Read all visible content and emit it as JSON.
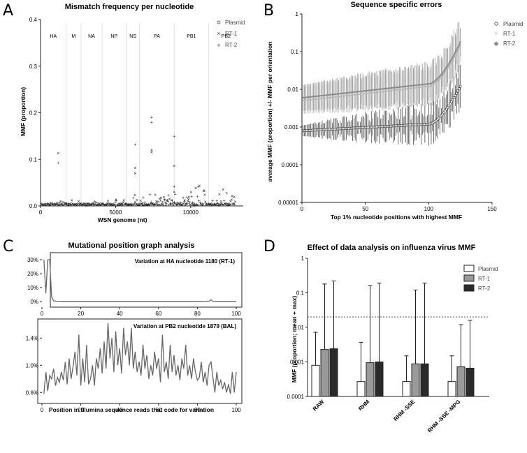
{
  "panels": {
    "a": "A",
    "b": "B",
    "c": "C",
    "d": "D"
  },
  "chart_data": [
    {
      "id": "A",
      "type": "scatter",
      "title": "Mismatch frequency per nucleotide",
      "xlabel": "WSN genome (nt)",
      "ylabel": "MMF (proportion)",
      "xlim": [
        0,
        13500
      ],
      "ylim": [
        0,
        0.4
      ],
      "xticks": [
        0,
        5000,
        10000
      ],
      "xtick_labels": [
        "0",
        "5000",
        "10000"
      ],
      "yticks": [
        0,
        0.1,
        0.2,
        0.3,
        0.4
      ],
      "ytick_labels": [
        "0.0",
        "0.1",
        "0.2",
        "0.3",
        "0.4"
      ],
      "segments": [
        {
          "name": "HA",
          "start": 0,
          "end": 1700
        },
        {
          "name": "M",
          "start": 1700,
          "end": 2700
        },
        {
          "name": "NA",
          "start": 2700,
          "end": 4100
        },
        {
          "name": "NP",
          "start": 4100,
          "end": 5700
        },
        {
          "name": "NS",
          "start": 5700,
          "end": 6600
        },
        {
          "name": "PA",
          "start": 6600,
          "end": 8900
        },
        {
          "name": "PB1",
          "start": 8900,
          "end": 11200
        },
        {
          "name": "PB2",
          "start": 11200,
          "end": 13500
        }
      ],
      "legend": [
        "Plasmid",
        "RT-1",
        "RT-2"
      ],
      "outliers": [
        {
          "series": "RT-1",
          "x": 1180,
          "y": 0.113
        },
        {
          "series": "RT-2",
          "x": 1180,
          "y": 0.093
        },
        {
          "series": "RT-2",
          "x": 6300,
          "y": 0.132
        },
        {
          "series": "RT-1",
          "x": 6300,
          "y": 0.082
        },
        {
          "series": "RT-1",
          "x": 6300,
          "y": 0.07
        },
        {
          "series": "RT-2",
          "x": 7400,
          "y": 0.19
        },
        {
          "series": "RT-2",
          "x": 7400,
          "y": 0.18
        },
        {
          "series": "RT-1",
          "x": 7400,
          "y": 0.12
        },
        {
          "series": "RT-1",
          "x": 7400,
          "y": 0.115
        },
        {
          "series": "RT-2",
          "x": 8900,
          "y": 0.15
        },
        {
          "series": "RT-1",
          "x": 8900,
          "y": 0.086
        },
        {
          "series": "RT-2",
          "x": 8900,
          "y": 0.042
        },
        {
          "series": "RT-1",
          "x": 8900,
          "y": 0.03
        }
      ]
    },
    {
      "id": "B",
      "type": "scatter",
      "title": "Sequence specific errors",
      "xlabel": "Top 1% nucleotide positions with highest MMF",
      "ylabel": "average MMF (proportion) +/- MMF per orientation",
      "xlim": [
        0,
        150
      ],
      "ylim_log": [
        1e-05,
        1
      ],
      "xticks": [
        0,
        50,
        100,
        150
      ],
      "xtick_labels": [
        "0",
        "50",
        "100",
        "150"
      ],
      "ytick_labels": [
        "1",
        "0.1",
        "0.01",
        "0.001",
        "0.0001",
        "0.00001"
      ],
      "legend": [
        "Plasmid",
        "RT-1",
        "RT-2"
      ],
      "n_points": 125,
      "series": [
        {
          "name": "Plasmid",
          "start": 0.0008,
          "knee": 0.0012,
          "end": 0.012
        },
        {
          "name": "RT-1",
          "start": 0.005,
          "knee": 0.012,
          "end": 0.15
        },
        {
          "name": "RT-2",
          "start": 0.006,
          "knee": 0.014,
          "end": 0.18
        }
      ]
    },
    {
      "id": "C",
      "type": "line",
      "title": "Mutational position graph analysis",
      "xlabel": "Position in Illumina sequence reads that code for variation",
      "subplots": [
        {
          "annotation": "Variation at HA nucleotide 1180  (RT-1)",
          "ylim": [
            0,
            30
          ],
          "yticks": [
            0,
            10,
            20,
            30
          ],
          "ytick_labels": [
            "0%",
            "10%",
            "20%",
            "30%"
          ],
          "xticks": [
            0,
            20,
            40,
            60,
            80,
            100
          ],
          "xtick_labels": [
            "0",
            "20",
            "40",
            "60",
            "80",
            "100"
          ],
          "x": [
            1,
            2,
            3,
            4,
            5,
            6,
            7,
            8,
            10,
            20,
            40,
            60,
            80,
            86,
            87,
            88,
            90,
            100
          ],
          "y": [
            30,
            6,
            30,
            30,
            3,
            0.5,
            0.3,
            0.2,
            0.1,
            0.1,
            0.1,
            0.1,
            0.1,
            0.2,
            1.2,
            0.2,
            0.1,
            0.1
          ]
        },
        {
          "annotation": "Variation at PB2 nucleotide 1879 (BAL)",
          "ylim": [
            0.5,
            1.65
          ],
          "yticks": [
            0.6,
            1.0,
            1.4
          ],
          "ytick_labels": [
            "0.6%",
            "1.0%",
            "1.4%"
          ],
          "xticks": [
            0,
            20,
            40,
            60,
            80,
            100
          ],
          "xtick_labels": [
            "0",
            "20",
            "40",
            "60",
            "80",
            "100"
          ],
          "x": [
            1,
            2,
            3,
            4,
            5,
            6,
            7,
            8,
            9,
            10,
            11,
            12,
            13,
            14,
            15,
            16,
            17,
            18,
            19,
            20,
            21,
            22,
            23,
            24,
            25,
            26,
            27,
            28,
            29,
            30,
            31,
            32,
            33,
            34,
            35,
            36,
            37,
            38,
            39,
            40,
            41,
            42,
            43,
            44,
            45,
            46,
            47,
            48,
            49,
            50,
            51,
            52,
            53,
            54,
            55,
            56,
            57,
            58,
            59,
            60,
            61,
            62,
            63,
            64,
            65,
            66,
            67,
            68,
            69,
            70,
            71,
            72,
            73,
            74,
            75,
            76,
            77,
            78,
            79,
            80,
            81,
            82,
            83,
            84,
            85,
            86,
            87,
            88,
            89,
            90,
            91,
            92,
            93,
            94,
            95,
            96,
            97,
            98,
            99,
            100
          ],
          "y": [
            0.58,
            0.9,
            0.62,
            0.85,
            0.8,
            0.95,
            0.7,
            0.82,
            0.75,
            0.9,
            0.78,
            1.05,
            0.72,
            1.1,
            0.8,
            0.98,
            1.2,
            0.85,
            1.45,
            0.7,
            1.1,
            0.75,
            1.3,
            0.72,
            0.8,
            1.0,
            0.7,
            1.1,
            0.95,
            1.25,
            0.88,
            1.35,
            0.95,
            1.62,
            1.1,
            1.4,
            0.9,
            1.5,
            1.0,
            1.25,
            0.88,
            1.55,
            1.15,
            1.35,
            1.0,
            1.55,
            0.95,
            1.2,
            0.9,
            1.05,
            0.85,
            1.3,
            0.95,
            1.15,
            0.8,
            1.0,
            0.85,
            1.2,
            0.95,
            1.1,
            0.75,
            1.45,
            0.9,
            1.05,
            0.8,
            1.3,
            0.9,
            1.15,
            0.85,
            1.0,
            0.78,
            1.1,
            0.95,
            1.3,
            0.85,
            1.0,
            0.8,
            1.1,
            0.9,
            0.78,
            0.82,
            1.05,
            0.75,
            0.9,
            0.7,
            1.0,
            1.05,
            0.82,
            0.6,
            0.9,
            0.7,
            0.78,
            0.65,
            0.75,
            0.6,
            0.72,
            0.58,
            0.9,
            0.6,
            0.9
          ]
        }
      ]
    },
    {
      "id": "D",
      "type": "bar",
      "title": "Effect of data analysis on influenza virus MMF",
      "ylabel": "MMF (proportion; mean + max)",
      "ylim_log": [
        0.0001,
        1
      ],
      "ytick_labels": [
        "1",
        "0.1",
        "0.01",
        "0.001",
        "0.0001"
      ],
      "threshold": 0.02,
      "categories": [
        "RAW",
        "RHM",
        "RHM -SSE",
        "RHM -SSE -MPG"
      ],
      "series": [
        {
          "name": "Plasmid",
          "color": "#ffffff",
          "values": [
            0.0008,
            0.00027,
            0.00027,
            0.00027
          ],
          "max": [
            0.0072,
            0.0037,
            0.0015,
            0.0015
          ]
        },
        {
          "name": "RT-1",
          "color": "#9a9a9a",
          "values": [
            0.0023,
            0.00095,
            0.00088,
            0.00072
          ],
          "max": [
            0.18,
            0.16,
            0.12,
            0.012
          ]
        },
        {
          "name": "RT-2",
          "color": "#2a2a2a",
          "values": [
            0.0024,
            0.001,
            0.00088,
            0.00066
          ],
          "max": [
            0.22,
            0.19,
            0.19,
            0.016
          ]
        }
      ]
    }
  ]
}
